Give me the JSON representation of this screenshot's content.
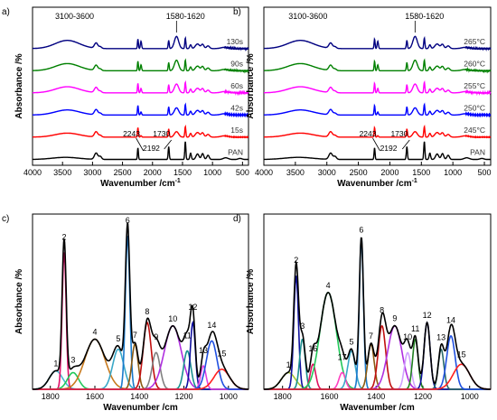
{
  "chart_data": [
    {
      "panel": "a)",
      "type": "line",
      "xlabel": "Wavenumber /cm",
      "xlabel_sup": "-1",
      "ylabel": "Absorbance /%",
      "xlim": [
        4000,
        400
      ],
      "xticks": [
        4000,
        3500,
        3000,
        2500,
        2000,
        1500,
        1000,
        500
      ],
      "region_labels": [
        {
          "text": "3100-3600",
          "x": 3300
        },
        {
          "text": "1580-1620",
          "x": 1450
        }
      ],
      "annotations": [
        {
          "text": "2243",
          "x": 2350,
          "series": "PAN"
        },
        {
          "text": "2192",
          "x": 2020,
          "series": "PAN"
        },
        {
          "text": "1730",
          "x": 1850,
          "series": "PAN"
        }
      ],
      "series": [
        {
          "name": "PAN",
          "color": "#000000"
        },
        {
          "name": "15s",
          "color": "#ff0000"
        },
        {
          "name": "42s",
          "color": "#0000ff"
        },
        {
          "name": "60s",
          "color": "#ff00ff"
        },
        {
          "name": "90s",
          "color": "#008000"
        },
        {
          "name": "130s",
          "color": "#000080"
        }
      ]
    },
    {
      "panel": "b)",
      "type": "line",
      "xlabel": "Wavenumber /cm",
      "xlabel_sup": "-1",
      "ylabel": "Absorbance /%",
      "xlim": [
        4000,
        400
      ],
      "xticks": [
        4000,
        3500,
        3000,
        2500,
        2000,
        1500,
        1000,
        500
      ],
      "region_labels": [
        {
          "text": "3100-3600",
          "x": 3300
        },
        {
          "text": "1580-1620",
          "x": 1450
        }
      ],
      "annotations": [
        {
          "text": "2243",
          "x": 2350,
          "series": "PAN"
        },
        {
          "text": "2192",
          "x": 2020,
          "series": "PAN"
        },
        {
          "text": "1730",
          "x": 1850,
          "series": "PAN"
        }
      ],
      "series": [
        {
          "name": "PAN",
          "color": "#000000"
        },
        {
          "name": "245°C",
          "color": "#ff0000"
        },
        {
          "name": "250°C",
          "color": "#0000ff"
        },
        {
          "name": "255°C",
          "color": "#ff00ff"
        },
        {
          "name": "260°C",
          "color": "#008000"
        },
        {
          "name": "265°C",
          "color": "#000080"
        }
      ]
    },
    {
      "panel": "c)",
      "type": "line",
      "xlabel": "Wavenumber /cm",
      "ylabel": "Absorbance /%",
      "xlim": [
        1880,
        910
      ],
      "ylim": [
        0,
        1.05
      ],
      "xticks": [
        1800,
        1600,
        1400,
        1200,
        1000
      ],
      "envelope_color": "#000000",
      "peaks": [
        {
          "label": "1",
          "center": 1775,
          "height": 0.11,
          "width": 30,
          "color": "#4ab8d0"
        },
        {
          "label": "2",
          "center": 1738,
          "height": 0.82,
          "width": 9,
          "color": "#e0106a"
        },
        {
          "label": "3",
          "center": 1698,
          "height": 0.1,
          "width": 25,
          "color": "#22c85a"
        },
        {
          "label": "4",
          "center": 1600,
          "height": 0.3,
          "width": 45,
          "color": "#c87a1e"
        },
        {
          "label": "5",
          "center": 1495,
          "height": 0.24,
          "width": 25,
          "color": "#3aa8c8"
        },
        {
          "label": "6",
          "center": 1453,
          "height": 0.92,
          "width": 10,
          "color": "#1a7acc"
        },
        {
          "label": "7",
          "center": 1420,
          "height": 0.27,
          "width": 14,
          "color": "#8a5a10"
        },
        {
          "label": "8",
          "center": 1365,
          "height": 0.4,
          "width": 18,
          "color": "#c01010"
        },
        {
          "label": "9",
          "center": 1325,
          "height": 0.22,
          "width": 18,
          "color": "#808080"
        },
        {
          "label": "10",
          "center": 1250,
          "height": 0.38,
          "width": 38,
          "color": "#b030e0"
        },
        {
          "label": "11",
          "center": 1185,
          "height": 0.23,
          "width": 16,
          "color": "#1a9090"
        },
        {
          "label": "12",
          "center": 1160,
          "height": 0.4,
          "width": 11,
          "color": "#1010a0"
        },
        {
          "label": "13",
          "center": 1113,
          "height": 0.14,
          "width": 12,
          "color": "#e040e0"
        },
        {
          "label": "14",
          "center": 1075,
          "height": 0.29,
          "width": 24,
          "color": "#2050e0"
        },
        {
          "label": "15",
          "center": 1030,
          "height": 0.12,
          "width": 35,
          "color": "#ff2020"
        }
      ]
    },
    {
      "panel": "d)",
      "type": "line",
      "xlabel": "Wavenumber /cm",
      "ylabel": "Absorbance /%",
      "xlim": [
        1880,
        910
      ],
      "ylim": [
        0,
        1.05
      ],
      "xticks": [
        1800,
        1600,
        1400,
        1200,
        1000
      ],
      "envelope_color": "#000000",
      "peaks": [
        {
          "label": "1",
          "center": 1775,
          "height": 0.1,
          "width": 30,
          "color": "#a8c830"
        },
        {
          "label": "2",
          "center": 1742,
          "height": 0.68,
          "width": 10,
          "color": "#1010a0"
        },
        {
          "label": "3",
          "center": 1715,
          "height": 0.3,
          "width": 12,
          "color": "#1a9090"
        },
        {
          "label": "16",
          "center": 1670,
          "height": 0.15,
          "width": 12,
          "color": "#e01060"
        },
        {
          "label": "4",
          "center": 1605,
          "height": 0.58,
          "width": 35,
          "color": "#22c85a"
        },
        {
          "label": "17",
          "center": 1545,
          "height": 0.1,
          "width": 14,
          "color": "#ff40c0"
        },
        {
          "label": "5",
          "center": 1505,
          "height": 0.23,
          "width": 16,
          "color": "#3aa8c8"
        },
        {
          "label": "6",
          "center": 1463,
          "height": 0.9,
          "width": 9,
          "color": "#1a7acc"
        },
        {
          "label": "7",
          "center": 1422,
          "height": 0.27,
          "width": 14,
          "color": "#8a5a10"
        },
        {
          "label": "8",
          "center": 1375,
          "height": 0.38,
          "width": 16,
          "color": "#c01010"
        },
        {
          "label": "9",
          "center": 1320,
          "height": 0.38,
          "width": 30,
          "color": "#b030e0"
        },
        {
          "label": "10",
          "center": 1265,
          "height": 0.22,
          "width": 14,
          "color": "#d0a0ff"
        },
        {
          "label": "11",
          "center": 1232,
          "height": 0.3,
          "width": 12,
          "color": "#208020"
        },
        {
          "label": "12",
          "center": 1182,
          "height": 0.4,
          "width": 13,
          "color": "#1010a0"
        },
        {
          "label": "13",
          "center": 1122,
          "height": 0.24,
          "width": 12,
          "color": "#2a6a6a"
        },
        {
          "label": "14",
          "center": 1080,
          "height": 0.32,
          "width": 18,
          "color": "#2050e0"
        },
        {
          "label": "15",
          "center": 1035,
          "height": 0.15,
          "width": 35,
          "color": "#ff2020"
        }
      ]
    }
  ]
}
